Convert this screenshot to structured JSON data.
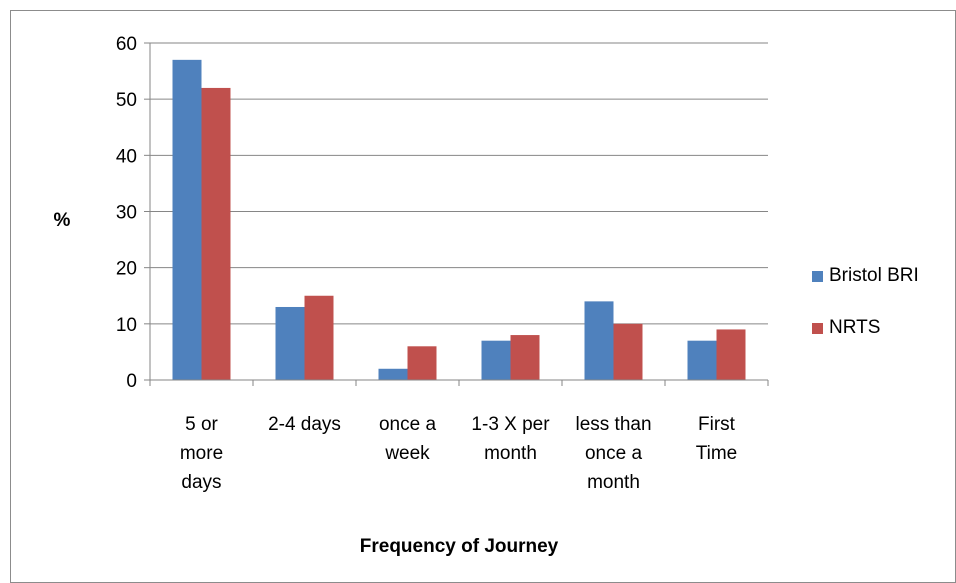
{
  "chart_data": {
    "type": "bar",
    "title": "",
    "xlabel": "Frequency of Journey",
    "ylabel": "%",
    "ylim": [
      0,
      60
    ],
    "yticks": [
      0,
      10,
      20,
      30,
      40,
      50,
      60
    ],
    "grid": true,
    "legend_position": "right",
    "categories": [
      [
        "5 or",
        "more",
        "days"
      ],
      [
        "2-4 days"
      ],
      [
        "once a",
        "week"
      ],
      [
        "1-3 X per",
        "month"
      ],
      [
        "less than",
        "once a",
        "month"
      ],
      [
        "First",
        "Time"
      ]
    ],
    "series": [
      {
        "name": "Bristol BRI",
        "color": "#4f81bd",
        "values": [
          57,
          13,
          2,
          7,
          14,
          7
        ]
      },
      {
        "name": "NRTS",
        "color": "#c0504d",
        "values": [
          52,
          15,
          6,
          8,
          10,
          9
        ]
      }
    ]
  }
}
